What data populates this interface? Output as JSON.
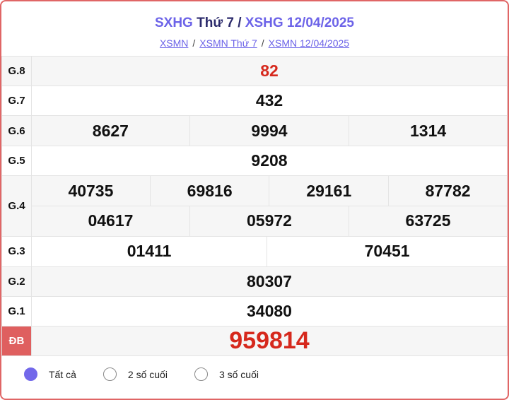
{
  "header": {
    "title_part1": "SXHG",
    "title_part2": "Thứ 7 /",
    "title_part3": "XSHG 12/04/2025"
  },
  "breadcrumb": [
    "XSMN",
    "XSMN Thứ 7",
    "XSMN 12/04/2025"
  ],
  "breadcrumb_sep": "/",
  "prizes": {
    "g8": {
      "label": "G.8",
      "values": [
        "82"
      ]
    },
    "g7": {
      "label": "G.7",
      "values": [
        "432"
      ]
    },
    "g6": {
      "label": "G.6",
      "values": [
        "8627",
        "9994",
        "1314"
      ]
    },
    "g5": {
      "label": "G.5",
      "values": [
        "9208"
      ]
    },
    "g4": {
      "label": "G.4",
      "values": [
        "40735",
        "69816",
        "29161",
        "87782",
        "04617",
        "05972",
        "63725"
      ]
    },
    "g3": {
      "label": "G.3",
      "values": [
        "01411",
        "70451"
      ]
    },
    "g2": {
      "label": "G.2",
      "values": [
        "80307"
      ]
    },
    "g1": {
      "label": "G.1",
      "values": [
        "34080"
      ]
    },
    "db": {
      "label": "ĐB",
      "values": [
        "959814"
      ]
    }
  },
  "filters": [
    {
      "label": "Tất cả",
      "selected": true
    },
    {
      "label": "2 số cuối",
      "selected": false
    },
    {
      "label": "3 số cuối",
      "selected": false
    }
  ],
  "colors": {
    "accent": "#6c63e8",
    "special": "#d6281c",
    "border": "#e06666"
  }
}
